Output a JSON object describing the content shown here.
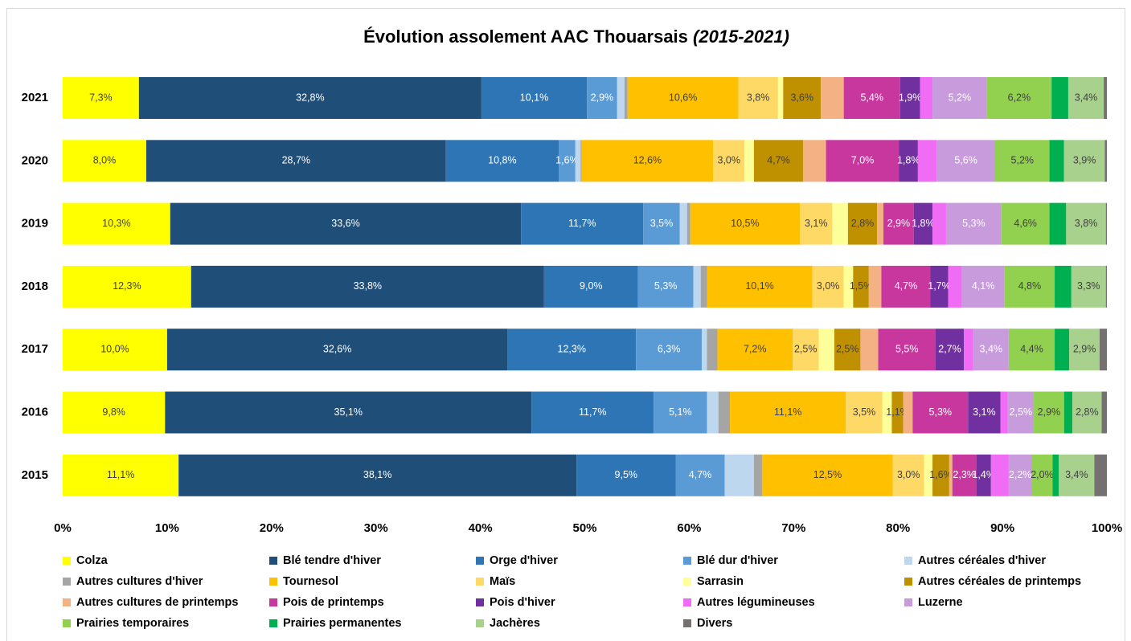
{
  "chart_data": {
    "type": "stacked-barh",
    "title": "Évolution assolement AAC Thouarsais",
    "title_period": "(2015-2021)",
    "categories": [
      "2021",
      "2020",
      "2019",
      "2018",
      "2017",
      "2016",
      "2015"
    ],
    "xlim": [
      0,
      100
    ],
    "xticks": [
      {
        "value": 0,
        "label": "0%"
      },
      {
        "value": 10,
        "label": "10%"
      },
      {
        "value": 20,
        "label": "20%"
      },
      {
        "value": 30,
        "label": "30%"
      },
      {
        "value": 40,
        "label": "40%"
      },
      {
        "value": 50,
        "label": "50%"
      },
      {
        "value": 60,
        "label": "60%"
      },
      {
        "value": 70,
        "label": "70%"
      },
      {
        "value": 80,
        "label": "80%"
      },
      {
        "value": 90,
        "label": "90%"
      },
      {
        "value": 100,
        "label": "100%"
      }
    ],
    "grid": false,
    "legend": "bottom",
    "series": [
      {
        "name": "Colza",
        "color": "#FFFF00",
        "label_color": "#404040",
        "values": [
          7.3,
          8.0,
          10.3,
          12.3,
          10.0,
          9.8,
          11.1
        ],
        "value_labels": [
          "7,3%",
          "8,0%",
          "10,3%",
          "12,3%",
          "10,0%",
          "9,8%",
          "11,1%"
        ]
      },
      {
        "name": "Blé tendre d'hiver",
        "color": "#1F4E79",
        "label_color": "#FFFFFF",
        "values": [
          32.8,
          28.7,
          33.6,
          33.8,
          32.6,
          35.1,
          38.1
        ],
        "value_labels": [
          "32,8%",
          "28,7%",
          "33,6%",
          "33,8%",
          "32,6%",
          "35,1%",
          "38,1%"
        ]
      },
      {
        "name": "Orge d'hiver",
        "color": "#2E75B6",
        "label_color": "#FFFFFF",
        "values": [
          10.1,
          10.8,
          11.7,
          9.0,
          12.3,
          11.7,
          9.5
        ],
        "value_labels": [
          "10,1%",
          "10,8%",
          "11,7%",
          "9,0%",
          "12,3%",
          "11,7%",
          "9,5%"
        ]
      },
      {
        "name": "Blé dur d'hiver",
        "color": "#5B9BD5",
        "label_color": "#FFFFFF",
        "values": [
          2.9,
          1.6,
          3.5,
          5.3,
          6.3,
          5.1,
          4.7
        ],
        "value_labels": [
          "2,9%",
          "1,6%",
          "3,5%",
          "5,3%",
          "6,3%",
          "5,1%",
          "4,7%"
        ]
      },
      {
        "name": "Autres céréales d'hiver",
        "color": "#BDD7EE",
        "values": [
          0.7,
          0.5,
          0.7,
          0.7,
          0.5,
          1.1,
          2.8
        ]
      },
      {
        "name": "Autres cultures d'hiver",
        "color": "#A5A5A5",
        "values": [
          0.3,
          0.1,
          0.3,
          0.6,
          1.0,
          1.1,
          0.8
        ]
      },
      {
        "name": "Tournesol",
        "color": "#FFC000",
        "label_color": "#404040",
        "values": [
          10.6,
          12.6,
          10.5,
          10.1,
          7.2,
          11.1,
          12.5
        ],
        "value_labels": [
          "10,6%",
          "12,6%",
          "10,5%",
          "10,1%",
          "7,2%",
          "11,1%",
          "12,5%"
        ]
      },
      {
        "name": "Maïs",
        "color": "#FFD966",
        "label_color": "#404040",
        "values": [
          3.8,
          3.0,
          3.1,
          3.0,
          2.5,
          3.5,
          3.0
        ],
        "value_labels": [
          "3,8%",
          "3,0%",
          "3,1%",
          "3,0%",
          "2,5%",
          "3,5%",
          "3,0%"
        ]
      },
      {
        "name": "Sarrasin",
        "color": "#FFFF99",
        "values": [
          0.5,
          0.9,
          1.5,
          0.9,
          1.5,
          0.9,
          0.8
        ]
      },
      {
        "name": "Autres céréales de printemps",
        "color": "#BF9000",
        "label_color": "#404040",
        "values": [
          3.6,
          4.7,
          2.8,
          1.5,
          2.5,
          1.1,
          1.6
        ],
        "value_labels": [
          "3,6%",
          "4,7%",
          "2,8%",
          "1,5%",
          "2,5%",
          "1,1%",
          "1,6%"
        ]
      },
      {
        "name": "Autres cultures de printemps",
        "color": "#F4B183",
        "values": [
          2.2,
          2.2,
          0.6,
          1.2,
          1.7,
          0.9,
          0.3
        ]
      },
      {
        "name": "Pois de printemps",
        "color": "#C8379E",
        "label_color": "#FFFFFF",
        "values": [
          5.4,
          7.0,
          2.9,
          4.7,
          5.5,
          5.3,
          2.3
        ],
        "value_labels": [
          "5,4%",
          "7,0%",
          "2,9%",
          "4,7%",
          "5,5%",
          "5,3%",
          "2,3%"
        ]
      },
      {
        "name": "Pois d'hiver",
        "color": "#7030A0",
        "label_color": "#FFFFFF",
        "values": [
          1.9,
          1.8,
          1.8,
          1.7,
          2.7,
          3.1,
          1.4
        ],
        "value_labels": [
          "1,9%",
          "1,8%",
          "1,8%",
          "1,7%",
          "2,7%",
          "3,1%",
          "1,4%"
        ]
      },
      {
        "name": "Autres légumineuses",
        "color": "#F06CF5",
        "values": [
          1.2,
          1.8,
          1.3,
          1.3,
          0.9,
          0.7,
          1.7
        ]
      },
      {
        "name": "Luzerne",
        "color": "#C89BDC",
        "label_color": "#FFFFFF",
        "values": [
          5.2,
          5.6,
          5.3,
          4.1,
          3.4,
          2.5,
          2.2
        ],
        "value_labels": [
          "5,2%",
          "5,6%",
          "5,3%",
          "4,1%",
          "3,4%",
          "2,5%",
          "2,2%"
        ]
      },
      {
        "name": "Prairies temporaires",
        "color": "#92D050",
        "label_color": "#404040",
        "values": [
          6.2,
          5.2,
          4.6,
          4.8,
          4.4,
          2.9,
          2.0
        ],
        "value_labels": [
          "6,2%",
          "5,2%",
          "4,6%",
          "4,8%",
          "4,4%",
          "2,9%",
          "2,0%"
        ]
      },
      {
        "name": "Prairies permanentes",
        "color": "#00B050",
        "values": [
          1.6,
          1.4,
          1.6,
          1.6,
          1.4,
          0.8,
          0.6
        ]
      },
      {
        "name": "Jachères",
        "color": "#A9D18E",
        "label_color": "#404040",
        "values": [
          3.4,
          3.9,
          3.8,
          3.3,
          2.9,
          2.8,
          3.4
        ],
        "value_labels": [
          "3,4%",
          "3,9%",
          "3,8%",
          "3,3%",
          "2,9%",
          "2,8%",
          "3,4%"
        ]
      },
      {
        "name": "Divers",
        "color": "#767171",
        "values": [
          0.3,
          0.2,
          0.1,
          0.1,
          0.7,
          0.5,
          1.2
        ]
      }
    ]
  }
}
